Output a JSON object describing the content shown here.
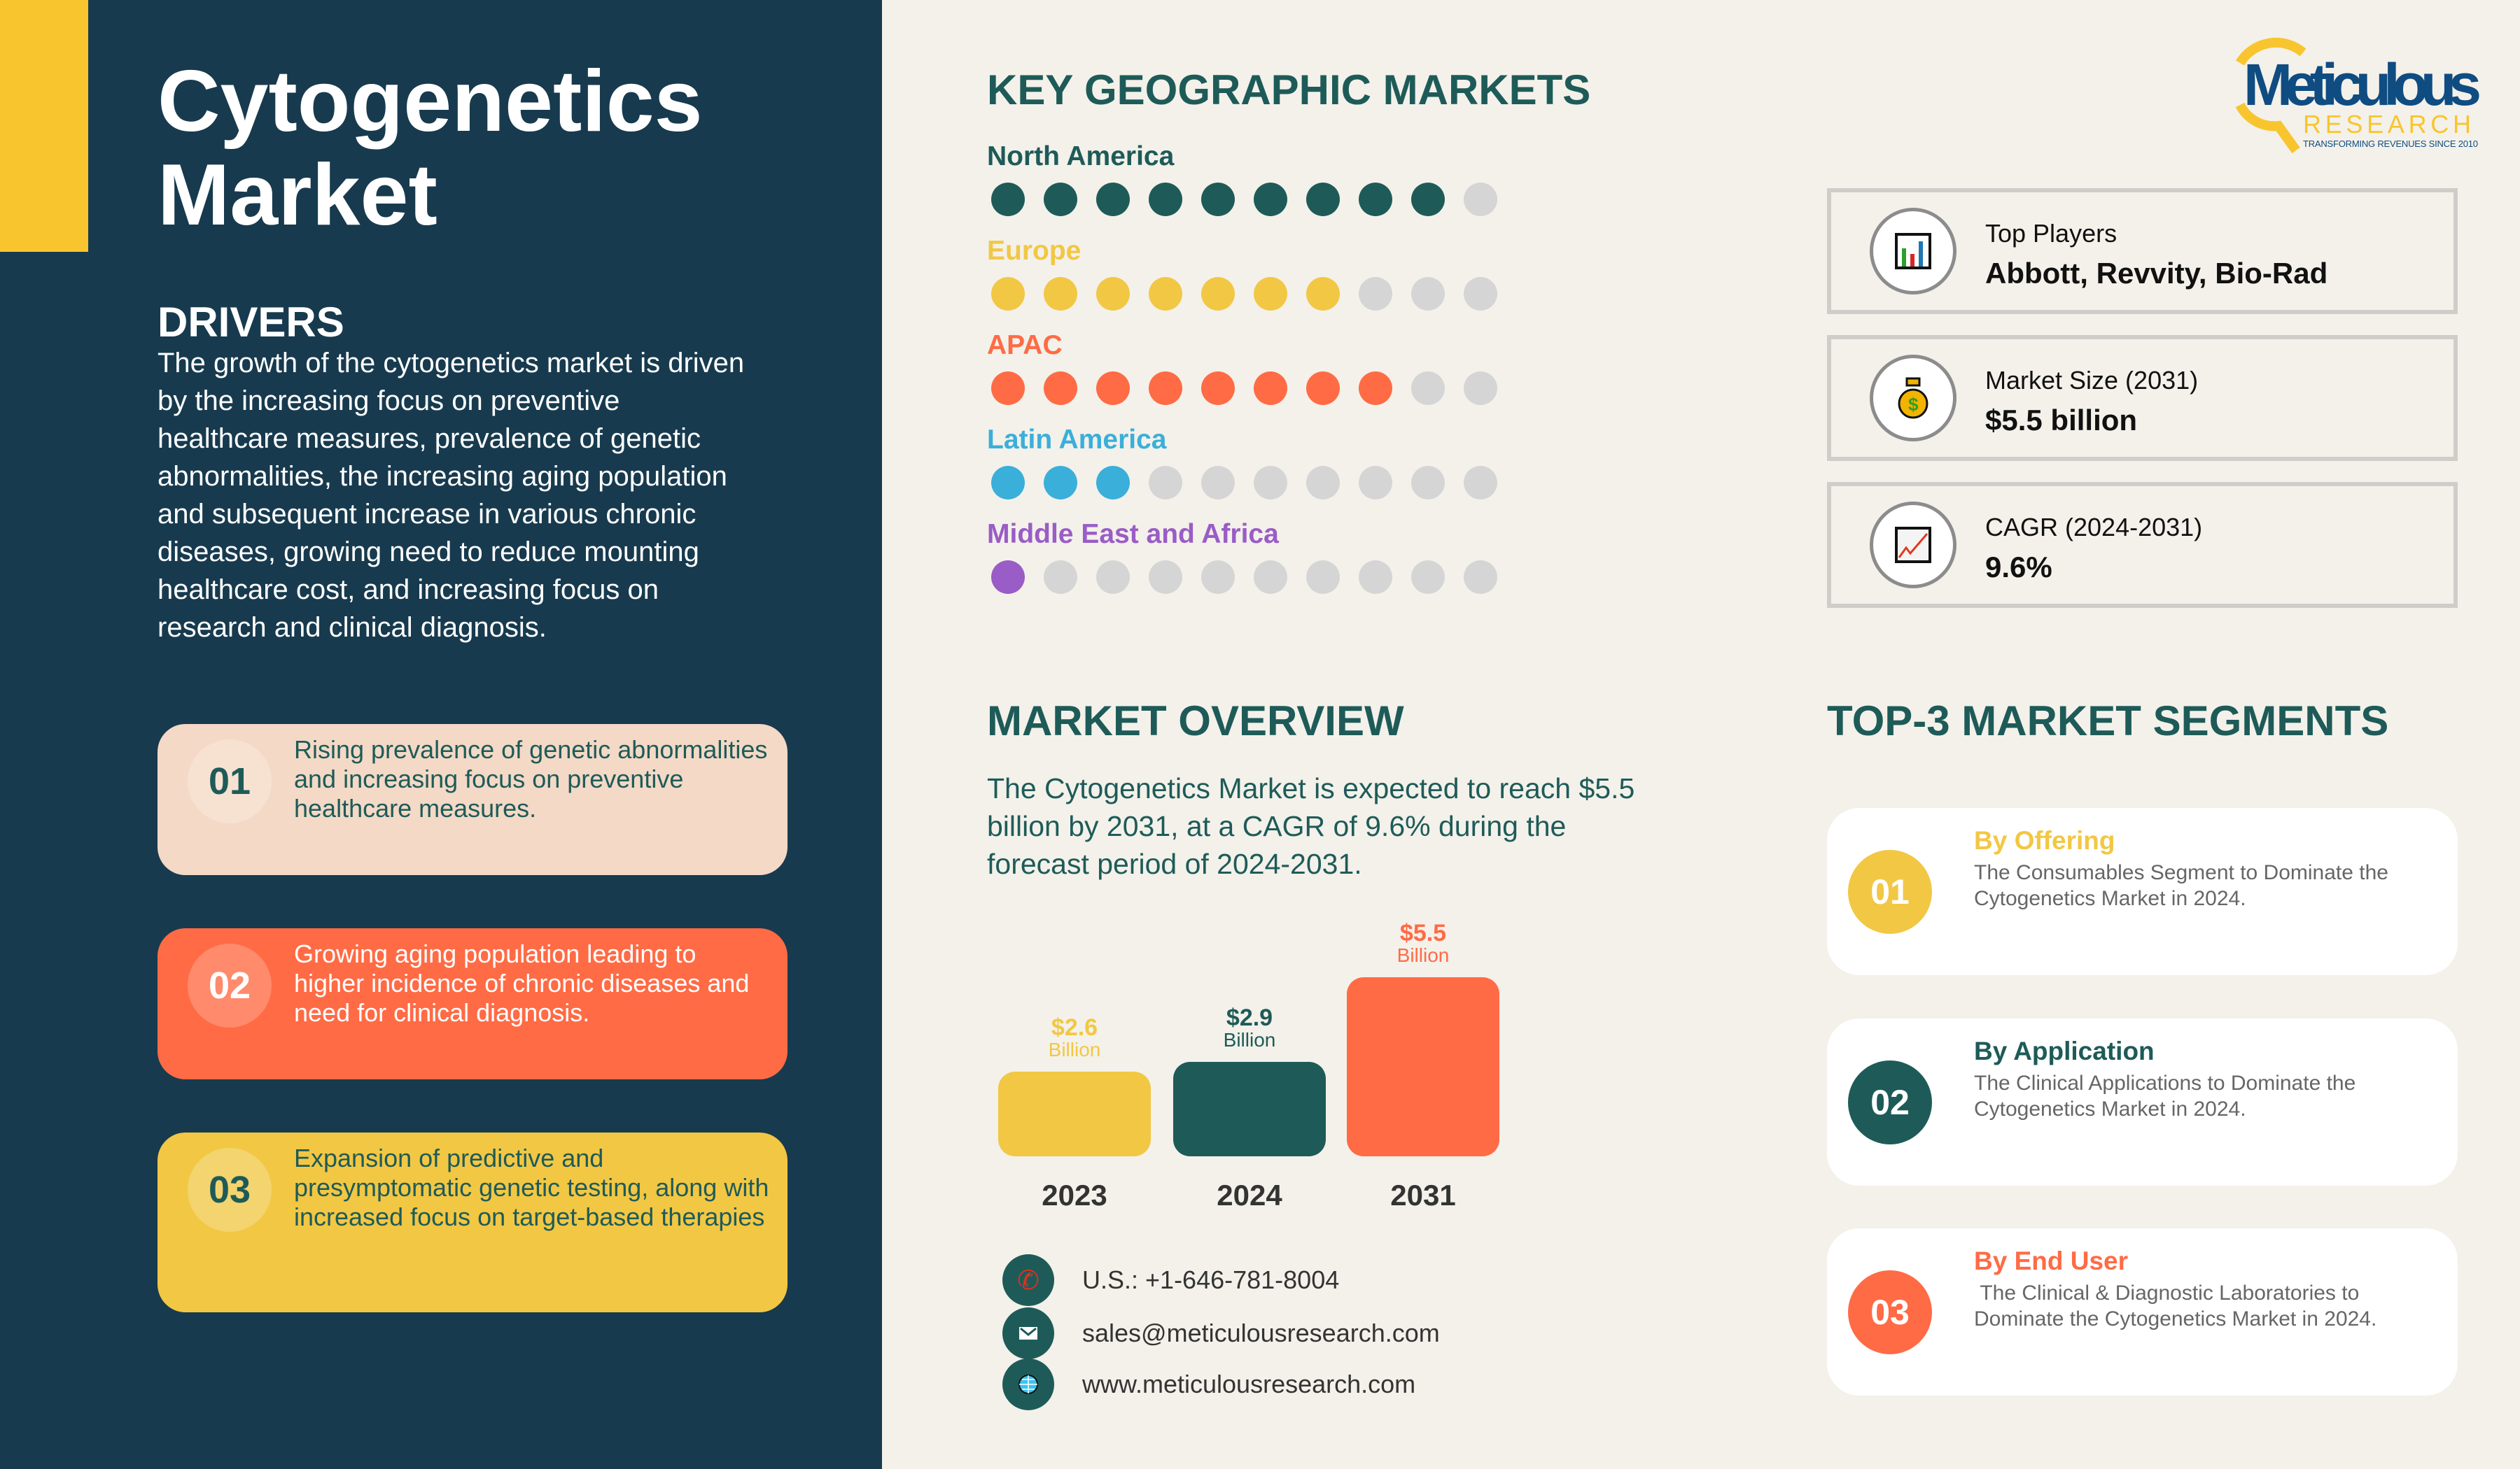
{
  "colors": {
    "panel": "#173a4e",
    "teal": "#1e5b58",
    "yellow": "#f2c744",
    "orange": "#ff6b45",
    "cyan": "#3aafda",
    "purple": "#9a5cc6",
    "inactive": "#d5d5d5"
  },
  "title": "Cytogenetics Market",
  "drivers": {
    "heading": "DRIVERS",
    "text": "The growth of the cytogenetics market is driven by the increasing focus on preventive healthcare measures, prevalence of genetic abnormalities, the increasing aging population and subsequent increase in various chronic diseases, growing need to reduce mounting healthcare cost, and increasing focus on research and clinical diagnosis.",
    "cards": [
      {
        "num": "01",
        "text": "Rising prevalence of genetic abnormalities and increasing focus on preventive healthcare measures."
      },
      {
        "num": "02",
        "text": "Growing aging population leading to higher incidence of chronic diseases and need for clinical diagnosis."
      },
      {
        "num": "03",
        "text": "Expansion of predictive and presymptomatic genetic testing, along with increased focus on target-based therapies"
      }
    ]
  },
  "geo": {
    "heading": "KEY GEOGRAPHIC MARKETS",
    "regions": [
      {
        "name": "North America",
        "filled": 9,
        "total": 10,
        "color": "#1e5b58"
      },
      {
        "name": "Europe",
        "filled": 7,
        "total": 10,
        "color": "#f2c744"
      },
      {
        "name": "APAC",
        "filled": 8,
        "total": 10,
        "color": "#ff6b45"
      },
      {
        "name": "Latin America",
        "filled": 3,
        "total": 10,
        "color": "#3aafda"
      },
      {
        "name": "Middle East and Africa",
        "filled": 1,
        "total": 10,
        "color": "#9a5cc6"
      }
    ]
  },
  "logo": {
    "brand": "Meticulous",
    "sub": "RESEARCH",
    "tagline": "TRANSFORMING REVENUES SINCE 2010"
  },
  "info": [
    {
      "icon": "bar-chart-icon",
      "label": "Top Players",
      "value": "Abbott, Revvity, Bio-Rad"
    },
    {
      "icon": "money-bag-icon",
      "label": "Market Size (2031)",
      "value": "$5.5 billion"
    },
    {
      "icon": "line-chart-icon",
      "label": "CAGR (2024-2031)",
      "value": "9.6%"
    }
  ],
  "overview": {
    "heading": "MARKET OVERVIEW",
    "text": "The Cytogenetics Market is expected to reach $5.5 billion by 2031, at a CAGR of 9.6% during the forecast period of 2024-2031."
  },
  "chart_data": {
    "type": "bar",
    "categories": [
      "2023",
      "2024",
      "2031"
    ],
    "values": [
      2.6,
      2.9,
      5.5
    ],
    "value_labels": [
      "$2.6",
      "$2.9",
      "$5.5"
    ],
    "unit_label": "Billion",
    "colors": [
      "#f2c744",
      "#1e5b58",
      "#ff6b45"
    ]
  },
  "contact": {
    "phone": "U.S.: +1-646-781-8004",
    "email": "sales@meticulousresearch.com",
    "web": "www.meticulousresearch.com"
  },
  "segments": {
    "heading": "TOP-3 MARKET SEGMENTS",
    "items": [
      {
        "num": "01",
        "title": "By Offering",
        "desc": "The Consumables Segment to Dominate the Cytogenetics Market in 2024.",
        "color": "#f2c744"
      },
      {
        "num": "02",
        "title": "By Application",
        "desc": "The Clinical Applications to Dominate the Cytogenetics Market in 2024.",
        "color": "#1e5b58"
      },
      {
        "num": "03",
        "title": "By End User",
        "desc": " The Clinical & Diagnostic Laboratories to Dominate the Cytogenetics Market in 2024.",
        "color": "#ff6b45"
      }
    ]
  }
}
